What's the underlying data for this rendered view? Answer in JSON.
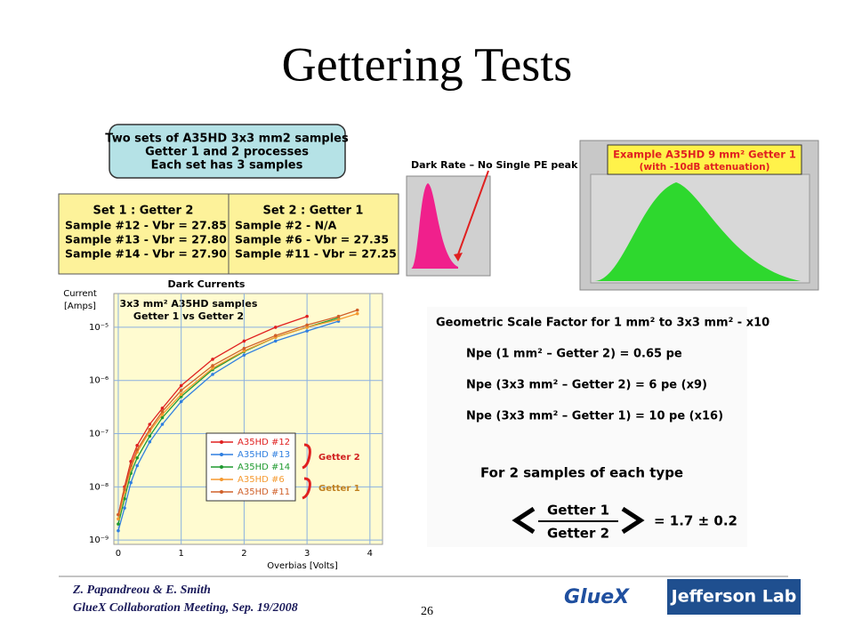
{
  "title": "Gettering Tests",
  "info_box": [
    "Two sets of A35HD 3x3 mm2 samples",
    "Getter 1 and 2 processes",
    "Each set has 3 samples"
  ],
  "table": {
    "headers": [
      "Set 1 : Getter 2",
      "Set 2 : Getter 1"
    ],
    "rows": [
      [
        "Sample #12  -  Vbr = 27.85",
        "Sample #2  -  N/A"
      ],
      [
        "Sample #13  - Vbr = 27.80",
        "Sample #6  - Vbr = 27.35"
      ],
      [
        "Sample #14  - Vbr = 27.90",
        "Sample #11  - Vbr = 27.25"
      ]
    ]
  },
  "histograms": {
    "dark_rate_label": "Dark Rate – No Single PE peak",
    "example_title": "Example A35HD 9 mm² Getter 1",
    "example_note": "(with -10dB attenuation)"
  },
  "formulas": [
    "Geometric Scale Factor for 1 mm² to 3x3 mm²  -  x10",
    "Npe (1 mm² – Getter 2) = 0.65 pe",
    "Npe (3x3 mm² – Getter 2) =  6 pe (x9)",
    "Npe (3x3 mm² – Getter 1) =  10 pe (x16)"
  ],
  "ratio": {
    "heading": "For 2 samples of each type",
    "numerator": "Getter 1",
    "denominator": "Getter 2",
    "result": "= 1.7 ± 0.2"
  },
  "footer": {
    "authors": "Z. Papandreou & E. Smith",
    "meeting": "GlueX Collaboration Meeting, Sep. 19/2008",
    "page": "26",
    "logo_gluex": "GlueX",
    "logo_jlab": "Jefferson Lab"
  },
  "chart_data": {
    "type": "line",
    "title": "Dark Currents",
    "subtitle": [
      "3x3 mm² A35HD samples",
      "Getter 1 vs Getter 2"
    ],
    "y_label": [
      "Current",
      "[Amps]"
    ],
    "x_label": "Overbias [Volts]",
    "log_y": true,
    "grid": true,
    "x": [
      0,
      0.1,
      0.2,
      0.3,
      0.5,
      0.7,
      1.0,
      1.5,
      2.0,
      2.5,
      3.0,
      3.5,
      3.8
    ],
    "xlim": [
      -0.07,
      4.2
    ],
    "xticks": [
      0,
      1,
      2,
      3,
      4
    ],
    "ylim": [
      8.3e-10,
      4.3e-05
    ],
    "yticks": [
      {
        "value": 1e-09,
        "label": "10⁻⁹"
      },
      {
        "value": 1e-08,
        "label": "10⁻⁸"
      },
      {
        "value": 1e-07,
        "label": "10⁻⁷"
      },
      {
        "value": 1e-06,
        "label": "10⁻⁶"
      },
      {
        "value": 1e-05,
        "label": "10⁻⁵"
      }
    ],
    "series": [
      {
        "name": "A35HD #12",
        "color": "#e02020",
        "values": [
          3e-09,
          1e-08,
          3e-08,
          6e-08,
          1.5e-07,
          3e-07,
          8e-07,
          2.5e-06,
          5.5e-06,
          1e-05,
          1.6e-05,
          null,
          null
        ]
      },
      {
        "name": "A35HD #13",
        "color": "#2f7fe0",
        "values": [
          1.5e-09,
          4e-09,
          1.2e-08,
          2.5e-08,
          7e-08,
          1.5e-07,
          4e-07,
          1.3e-06,
          3e-06,
          5.5e-06,
          8.5e-06,
          1.3e-05,
          null
        ]
      },
      {
        "name": "A35HD #14",
        "color": "#1f9a2f",
        "values": [
          2e-09,
          6e-09,
          1.8e-08,
          3.5e-08,
          9e-08,
          2e-07,
          5e-07,
          1.6e-06,
          3.5e-06,
          6.5e-06,
          1e-05,
          1.5e-05,
          null
        ]
      },
      {
        "name": "A35HD #6",
        "color": "#f59a30",
        "values": [
          2.5e-09,
          8e-09,
          2.2e-08,
          4.5e-08,
          1.1e-07,
          2.3e-07,
          5.5e-07,
          1.7e-06,
          3.6e-06,
          6.5e-06,
          1e-05,
          1.4e-05,
          1.8e-05
        ]
      },
      {
        "name": "A35HD #11",
        "color": "#d0602a",
        "values": [
          3e-09,
          9e-09,
          2.5e-08,
          5e-08,
          1.2e-07,
          2.6e-07,
          6.5e-07,
          1.9e-06,
          4e-06,
          7e-06,
          1.1e-05,
          1.6e-05,
          2.1e-05
        ]
      }
    ],
    "legend": "inside-lower-center",
    "annotations": [
      "Getter 2",
      "Getter 1"
    ]
  }
}
